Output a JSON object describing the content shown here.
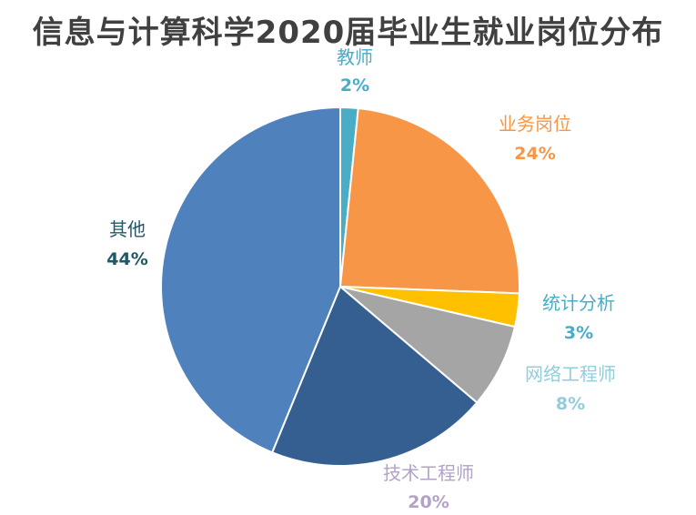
{
  "chart_data": {
    "type": "pie",
    "title": "信息与计算科学2020届毕业生就业岗位分布",
    "slices": [
      {
        "label": "教师",
        "value_label": "2%",
        "value": 1.6,
        "color": "#4BACC6",
        "label_color": "#4BACC6"
      },
      {
        "label": "业务岗位",
        "value_label": "24%",
        "value": 24,
        "color": "#F79646",
        "label_color": "#F79646"
      },
      {
        "label": "统计分析",
        "value_label": "3%",
        "value": 3,
        "color": "#FFC000",
        "label_color": "#4BACC6"
      },
      {
        "label": "网络工程师",
        "value_label": "8%",
        "value": 7.6,
        "color": "#A5A5A5",
        "label_color": "#92CDDC"
      },
      {
        "label": "技术工程师",
        "value_label": "20%",
        "value": 20,
        "color": "#365F91",
        "label_color": "#B2A2C7"
      },
      {
        "label": "其他",
        "value_label": "44%",
        "value": 43.8,
        "color": "#4F81BD",
        "label_color": "#215867"
      }
    ]
  }
}
